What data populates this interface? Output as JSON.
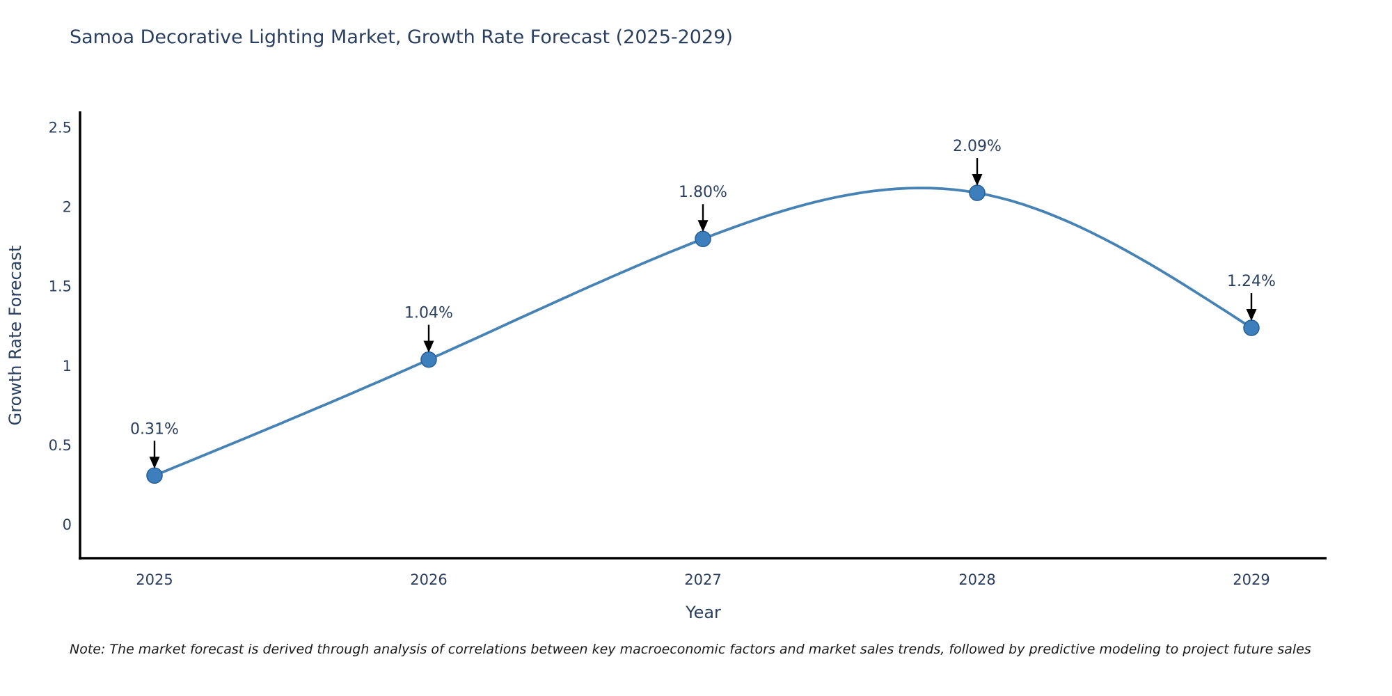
{
  "note": "Note: The market forecast is derived through analysis of correlations between key macroeconomic factors and market sales trends, followed by predictive modeling to project future sales",
  "colors": {
    "line": "#4682b4",
    "marker_fill": "#3d7ebc",
    "marker_edge": "#2a6099",
    "axis_line": "#000000",
    "chart_text": "#2a3f5f",
    "annotation_text": "#2a3f5f",
    "arrow": "#000000",
    "note_text": "#1a1a1a",
    "background": "#ffffff"
  },
  "chart_data": {
    "type": "line",
    "title": "Samoa Decorative Lighting Market, Growth Rate Forecast (2025-2029)",
    "x": [
      2025,
      2026,
      2027,
      2028,
      2029
    ],
    "xtick_labels": [
      "2025",
      "2026",
      "2027",
      "2028",
      "2029"
    ],
    "series": [
      {
        "name": "Growth Rate Forecast",
        "values": [
          0.31,
          1.04,
          1.8,
          2.09,
          1.24
        ]
      }
    ],
    "point_labels": [
      "0.31%",
      "1.04%",
      "1.80%",
      "2.09%",
      "1.24%"
    ],
    "xlabel": "Year",
    "ylabel": "Growth Rate Forecast",
    "ylim": [
      0,
      2.5
    ],
    "yticks": [
      0,
      0.5,
      1,
      1.5,
      2,
      2.5
    ],
    "ytick_labels": [
      "0",
      "0.5",
      "1",
      "1.5",
      "2",
      "2.5"
    ],
    "grid": false,
    "legend": "none",
    "line_shape": "spline",
    "markers": true,
    "annotations": "value labels with down arrows above each point"
  }
}
